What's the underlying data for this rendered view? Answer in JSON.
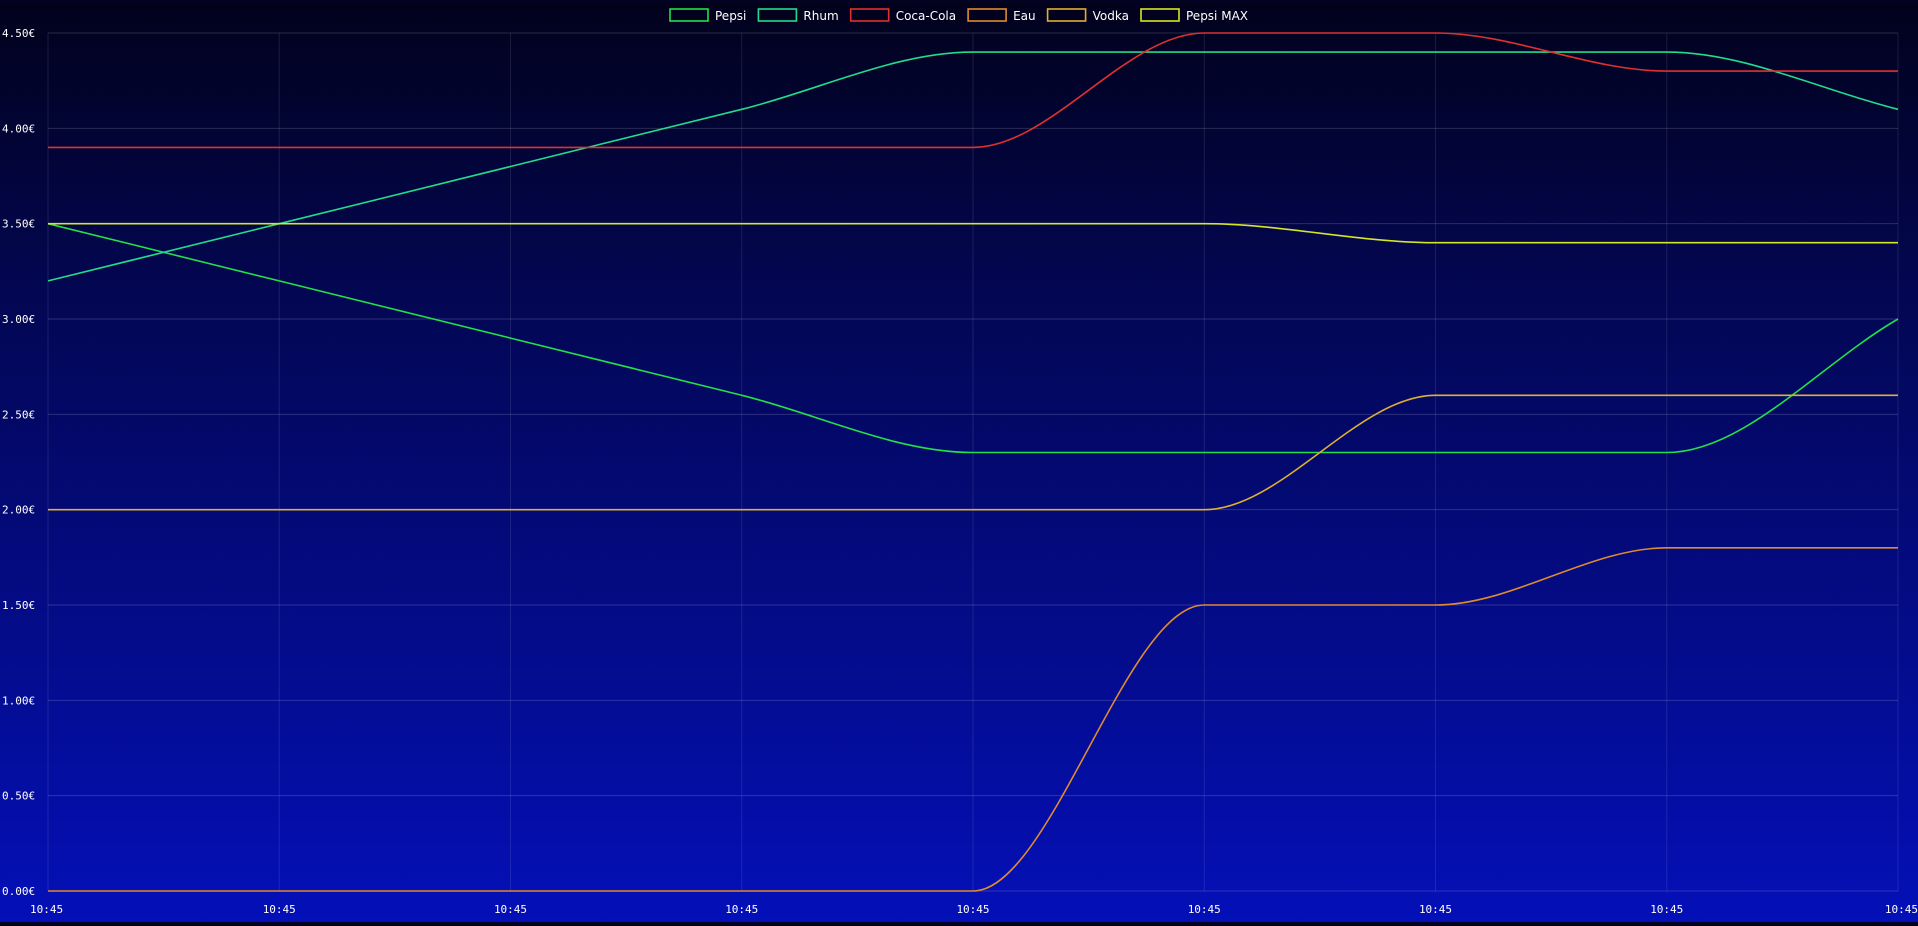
{
  "chart_data": {
    "type": "line",
    "x": [
      "10:45",
      "10:45",
      "10:45",
      "10:45",
      "10:45",
      "10:45",
      "10:45",
      "10:45",
      "10:45"
    ],
    "yticks": [
      "0.00€",
      "0.50€",
      "1.00€",
      "1.50€",
      "2.00€",
      "2.50€",
      "3.00€",
      "3.50€",
      "4.00€",
      "4.50€"
    ],
    "ylim": [
      0,
      4.5
    ],
    "grid": true,
    "legend_position": "top-center",
    "series": [
      {
        "name": "Pepsi",
        "color": "#22e04a",
        "values": [
          3.5,
          3.2,
          2.9,
          2.6,
          2.3,
          2.3,
          2.3,
          2.3,
          3.0
        ]
      },
      {
        "name": "Rhum",
        "color": "#22dc8c",
        "values": [
          3.2,
          3.5,
          3.8,
          4.1,
          4.4,
          4.4,
          4.4,
          4.4,
          4.1
        ]
      },
      {
        "name": "Coca-Cola",
        "color": "#e03030",
        "values": [
          3.9,
          3.9,
          3.9,
          3.9,
          3.9,
          4.5,
          4.5,
          4.3,
          4.3
        ]
      },
      {
        "name": "Eau",
        "color": "#e08a30",
        "values": [
          0.0,
          0.0,
          0.0,
          0.0,
          0.0,
          1.5,
          1.5,
          1.8,
          1.8
        ]
      },
      {
        "name": "Vodka",
        "color": "#e0b030",
        "values": [
          2.0,
          2.0,
          2.0,
          2.0,
          2.0,
          2.0,
          2.6,
          2.6,
          2.6
        ]
      },
      {
        "name": "Pepsi MAX",
        "color": "#d4e626",
        "values": [
          3.5,
          3.5,
          3.5,
          3.5,
          3.5,
          3.5,
          3.4,
          3.4,
          3.4
        ]
      }
    ]
  }
}
